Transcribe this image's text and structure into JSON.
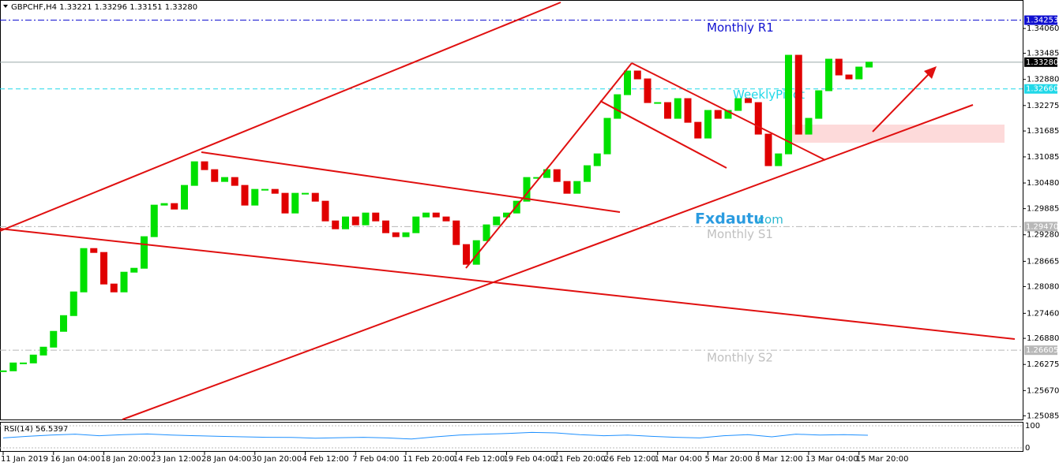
{
  "chart_data": {
    "type": "candlestick",
    "title": "GBPCHF,H4  1.33221 1.33296 1.33151 1.33280",
    "categories": [
      "11 Jan 2019",
      null,
      null,
      null,
      null,
      "16 Jan 04:00",
      null,
      null,
      null,
      null,
      "18 Jan 20:00",
      null,
      null,
      null,
      null,
      "23 Jan 12:00",
      null,
      null,
      null,
      null,
      "28 Jan 04:00",
      null,
      null,
      null,
      null,
      "30 Jan 20:00",
      null,
      null,
      null,
      null,
      "4 Feb 12:00",
      null,
      null,
      null,
      null,
      "7 Feb 04:00",
      null,
      null,
      null,
      null,
      "11 Feb 20:00",
      null,
      null,
      null,
      null,
      "14 Feb 12:00",
      null,
      null,
      null,
      null,
      "19 Feb 04:00",
      null,
      null,
      null,
      null,
      "21 Feb 20:00",
      null,
      null,
      null,
      null,
      "26 Feb 12:00",
      null,
      null,
      null,
      null,
      "1 Mar 04:00",
      null,
      null,
      null,
      null,
      "5 Mar 20:00",
      null,
      null,
      null,
      null,
      "8 Mar 12:00",
      null,
      null,
      null,
      null,
      "13 Mar 04:00",
      null,
      null,
      null,
      null,
      "15 Mar 20:00",
      null
    ],
    "close": [
      1.26127,
      1.2631,
      1.2631,
      1.26493,
      1.26676,
      1.27042,
      1.27407,
      1.27956,
      1.28961,
      1.2887,
      1.28139,
      1.27956,
      1.28413,
      1.28504,
      1.29236,
      1.29967,
      1.30003,
      1.29875,
      1.30424,
      1.30972,
      1.30789,
      1.30515,
      1.30607,
      1.30424,
      1.29967,
      1.30332,
      1.30332,
      1.30241,
      1.29784,
      1.30241,
      1.30241,
      1.30058,
      1.29601,
      1.29418,
      1.29693,
      1.2951,
      1.29784,
      1.29601,
      1.29327,
      1.29236,
      1.29327,
      1.29693,
      1.29784,
      1.29693,
      1.29601,
      1.29053,
      1.28596,
      1.29144,
      1.2951,
      1.29693,
      1.29784,
      1.30058,
      1.30607,
      1.30607,
      1.30789,
      1.30515,
      1.30241,
      1.30515,
      1.30881,
      1.31155,
      1.31978,
      1.32526,
      1.33075,
      1.32892,
      1.32343,
      1.32343,
      1.31978,
      1.32435,
      1.31886,
      1.31521,
      1.32161,
      1.31978,
      1.32161,
      1.32435,
      1.32343,
      1.31612,
      1.30881,
      1.31155,
      1.3344,
      1.31612,
      1.31978,
      1.32618,
      1.33349,
      1.32983,
      1.32892,
      1.33166,
      1.3328
    ],
    "up_color": "#00e000",
    "down_color": "#e00000",
    "ylim": [
      1.25,
      1.3472
    ],
    "yticks": [
      {
        "value": 1.3406,
        "label": "1.34060"
      },
      1.33485,
      {
        "value": 1.3288,
        "label": "1.32880"
      },
      1.32275,
      1.31685,
      1.31085,
      {
        "value": 1.3048,
        "label": "1.30480"
      },
      1.29885,
      {
        "value": 1.2928,
        "label": "1.29280"
      },
      1.28665,
      {
        "value": 1.2808,
        "label": "1.28080"
      },
      {
        "value": 1.2746,
        "label": "1.27460"
      },
      {
        "value": 1.2688,
        "label": "1.26880"
      },
      1.26275,
      {
        "value": 1.2567,
        "label": "1.25670"
      },
      1.25085
    ],
    "levels": [
      {
        "name": "Monthly R1",
        "value": 1.34253,
        "color": "#1010d0",
        "style": "dashdot"
      },
      {
        "value": 1.3328,
        "label": "1.33280",
        "color": "#9aa8a8",
        "style": "solid"
      },
      {
        "name": "WeeklyPivot",
        "value": 1.3266,
        "label": "1.32660",
        "color": "#20d8e8",
        "style": "dashed"
      },
      {
        "name": "Monthly S1",
        "value": 1.2947,
        "label": "1.29470",
        "color": "#b8b8b8",
        "style": "dashdot"
      },
      {
        "name": "Monthly S2",
        "value": 1.26605,
        "color": "#b8b8b8",
        "style": "dashdot"
      }
    ],
    "watermark": [
      "Fxdautu",
      ".com"
    ],
    "rsi": {
      "label": "RSI(14) 56.5397",
      "ylim": [
        0,
        100
      ],
      "yticks": [
        0,
        100
      ],
      "color": "#1e90ff",
      "values": [
        45,
        52,
        58,
        62,
        55,
        60,
        63,
        58,
        55,
        52,
        50,
        48,
        47,
        44,
        46,
        48,
        45,
        40,
        50,
        58,
        62,
        65,
        70,
        68,
        60,
        55,
        58,
        52,
        48,
        45,
        55,
        60,
        50,
        62,
        58,
        60,
        57
      ]
    }
  }
}
